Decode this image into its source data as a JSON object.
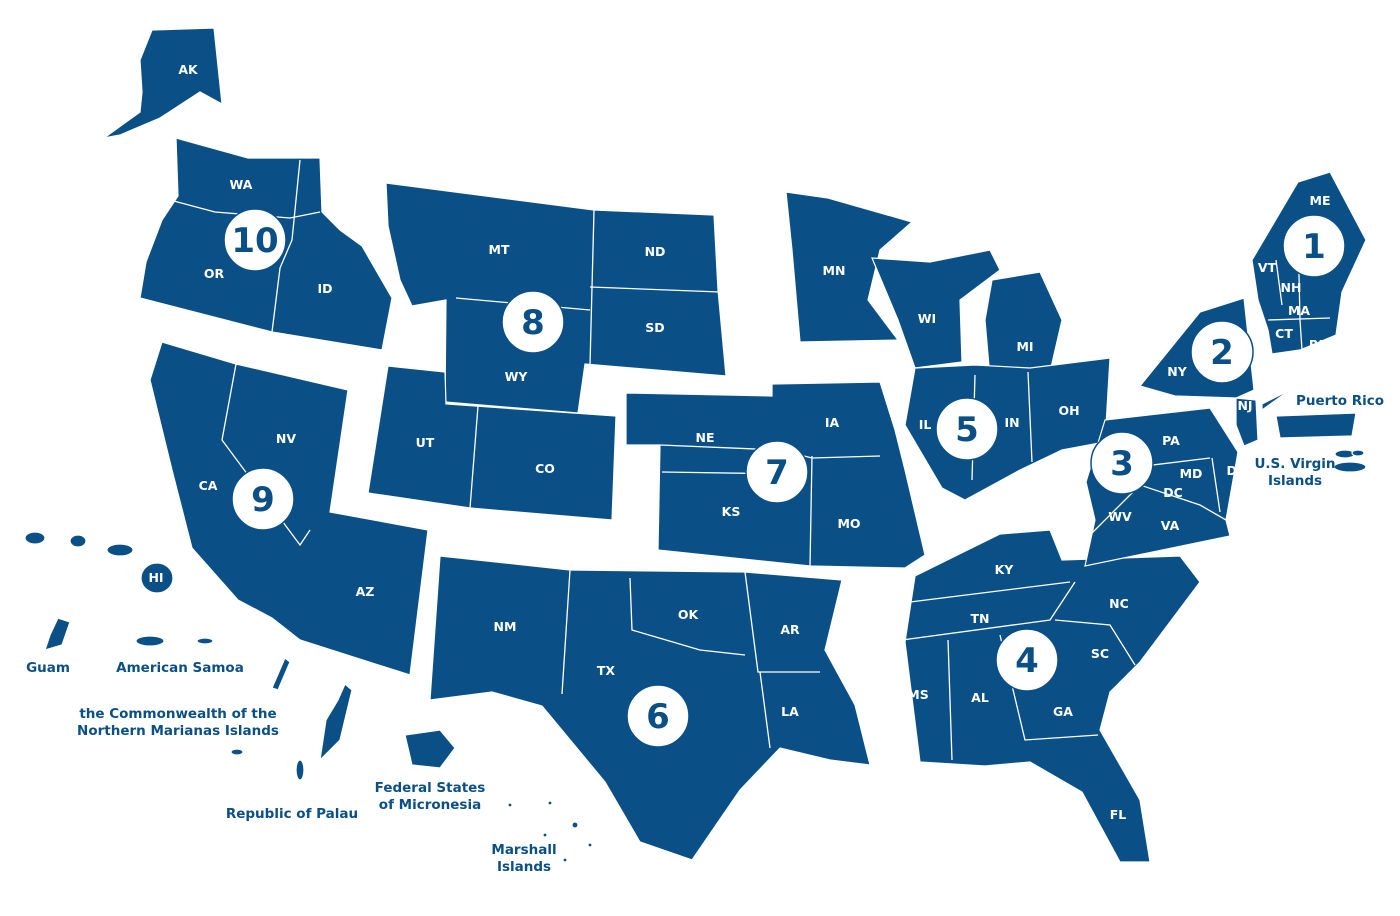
{
  "map": {
    "fill_color": "#0b4f87",
    "label_color": "#ffffff",
    "regions": [
      {
        "number": "1",
        "states": [
          "ME",
          "VT",
          "NH",
          "MA",
          "CT",
          "RI"
        ]
      },
      {
        "number": "2",
        "states": [
          "NY",
          "NJ"
        ],
        "territories": [
          "Puerto Rico",
          "U.S. Virgin Islands"
        ]
      },
      {
        "number": "3",
        "states": [
          "PA",
          "DE",
          "MD",
          "DC",
          "WV",
          "VA"
        ]
      },
      {
        "number": "4",
        "states": [
          "KY",
          "TN",
          "NC",
          "SC",
          "GA",
          "AL",
          "MS",
          "FL"
        ]
      },
      {
        "number": "5",
        "states": [
          "MN",
          "WI",
          "MI",
          "IL",
          "IN",
          "OH"
        ]
      },
      {
        "number": "6",
        "states": [
          "NM",
          "TX",
          "OK",
          "AR",
          "LA"
        ]
      },
      {
        "number": "7",
        "states": [
          "NE",
          "KS",
          "IA",
          "MO"
        ]
      },
      {
        "number": "8",
        "states": [
          "MT",
          "ND",
          "SD",
          "WY",
          "UT",
          "CO"
        ]
      },
      {
        "number": "9",
        "states": [
          "CA",
          "NV",
          "AZ",
          "HI"
        ],
        "territories": [
          "Guam",
          "American Samoa",
          "the Commonwealth of the Northern Marianas Islands",
          "Federal States of Micronesia",
          "Republic of Palau",
          "Marshall Islands"
        ]
      },
      {
        "number": "10",
        "states": [
          "AK",
          "WA",
          "OR",
          "ID"
        ]
      }
    ],
    "territory_labels": {
      "puerto_rico": "Puerto Rico",
      "usvi_1": "U.S. Virgin",
      "usvi_2": "Islands",
      "guam": "Guam",
      "american_samoa": "American Samoa",
      "cnmi_1": "the Commonwealth of the",
      "cnmi_2": "Northern Marianas Islands",
      "palau": "Republic of Palau",
      "micronesia_1": "Federal States",
      "micronesia_2": "of Micronesia",
      "marshall_1": "Marshall",
      "marshall_2": "Islands"
    }
  }
}
